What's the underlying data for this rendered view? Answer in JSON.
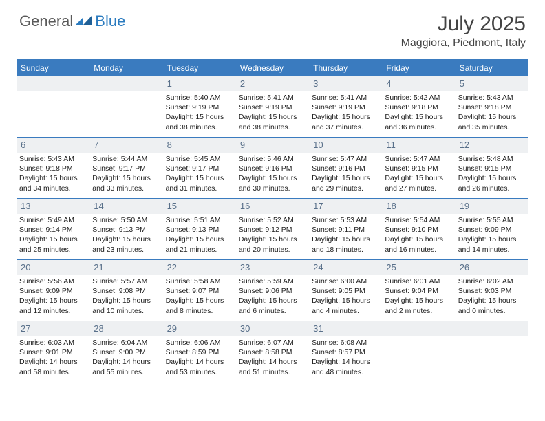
{
  "logo": {
    "text1": "General",
    "text2": "Blue"
  },
  "title": "July 2025",
  "location": "Maggiora, Piedmont, Italy",
  "colors": {
    "header_bar": "#3a7bbf",
    "header_text": "#ffffff",
    "daynum_bg": "#eef0f2",
    "daynum_color": "#59708a",
    "body_text": "#222222",
    "logo_gray": "#5a5a5a",
    "logo_blue": "#2b7bbf"
  },
  "weekdays": [
    "Sunday",
    "Monday",
    "Tuesday",
    "Wednesday",
    "Thursday",
    "Friday",
    "Saturday"
  ],
  "weeks": [
    [
      null,
      null,
      {
        "n": "1",
        "sr": "5:40 AM",
        "ss": "9:19 PM",
        "dl": "15 hours and 38 minutes."
      },
      {
        "n": "2",
        "sr": "5:41 AM",
        "ss": "9:19 PM",
        "dl": "15 hours and 38 minutes."
      },
      {
        "n": "3",
        "sr": "5:41 AM",
        "ss": "9:19 PM",
        "dl": "15 hours and 37 minutes."
      },
      {
        "n": "4",
        "sr": "5:42 AM",
        "ss": "9:18 PM",
        "dl": "15 hours and 36 minutes."
      },
      {
        "n": "5",
        "sr": "5:43 AM",
        "ss": "9:18 PM",
        "dl": "15 hours and 35 minutes."
      }
    ],
    [
      {
        "n": "6",
        "sr": "5:43 AM",
        "ss": "9:18 PM",
        "dl": "15 hours and 34 minutes."
      },
      {
        "n": "7",
        "sr": "5:44 AM",
        "ss": "9:17 PM",
        "dl": "15 hours and 33 minutes."
      },
      {
        "n": "8",
        "sr": "5:45 AM",
        "ss": "9:17 PM",
        "dl": "15 hours and 31 minutes."
      },
      {
        "n": "9",
        "sr": "5:46 AM",
        "ss": "9:16 PM",
        "dl": "15 hours and 30 minutes."
      },
      {
        "n": "10",
        "sr": "5:47 AM",
        "ss": "9:16 PM",
        "dl": "15 hours and 29 minutes."
      },
      {
        "n": "11",
        "sr": "5:47 AM",
        "ss": "9:15 PM",
        "dl": "15 hours and 27 minutes."
      },
      {
        "n": "12",
        "sr": "5:48 AM",
        "ss": "9:15 PM",
        "dl": "15 hours and 26 minutes."
      }
    ],
    [
      {
        "n": "13",
        "sr": "5:49 AM",
        "ss": "9:14 PM",
        "dl": "15 hours and 25 minutes."
      },
      {
        "n": "14",
        "sr": "5:50 AM",
        "ss": "9:13 PM",
        "dl": "15 hours and 23 minutes."
      },
      {
        "n": "15",
        "sr": "5:51 AM",
        "ss": "9:13 PM",
        "dl": "15 hours and 21 minutes."
      },
      {
        "n": "16",
        "sr": "5:52 AM",
        "ss": "9:12 PM",
        "dl": "15 hours and 20 minutes."
      },
      {
        "n": "17",
        "sr": "5:53 AM",
        "ss": "9:11 PM",
        "dl": "15 hours and 18 minutes."
      },
      {
        "n": "18",
        "sr": "5:54 AM",
        "ss": "9:10 PM",
        "dl": "15 hours and 16 minutes."
      },
      {
        "n": "19",
        "sr": "5:55 AM",
        "ss": "9:09 PM",
        "dl": "15 hours and 14 minutes."
      }
    ],
    [
      {
        "n": "20",
        "sr": "5:56 AM",
        "ss": "9:09 PM",
        "dl": "15 hours and 12 minutes."
      },
      {
        "n": "21",
        "sr": "5:57 AM",
        "ss": "9:08 PM",
        "dl": "15 hours and 10 minutes."
      },
      {
        "n": "22",
        "sr": "5:58 AM",
        "ss": "9:07 PM",
        "dl": "15 hours and 8 minutes."
      },
      {
        "n": "23",
        "sr": "5:59 AM",
        "ss": "9:06 PM",
        "dl": "15 hours and 6 minutes."
      },
      {
        "n": "24",
        "sr": "6:00 AM",
        "ss": "9:05 PM",
        "dl": "15 hours and 4 minutes."
      },
      {
        "n": "25",
        "sr": "6:01 AM",
        "ss": "9:04 PM",
        "dl": "15 hours and 2 minutes."
      },
      {
        "n": "26",
        "sr": "6:02 AM",
        "ss": "9:03 PM",
        "dl": "15 hours and 0 minutes."
      }
    ],
    [
      {
        "n": "27",
        "sr": "6:03 AM",
        "ss": "9:01 PM",
        "dl": "14 hours and 58 minutes."
      },
      {
        "n": "28",
        "sr": "6:04 AM",
        "ss": "9:00 PM",
        "dl": "14 hours and 55 minutes."
      },
      {
        "n": "29",
        "sr": "6:06 AM",
        "ss": "8:59 PM",
        "dl": "14 hours and 53 minutes."
      },
      {
        "n": "30",
        "sr": "6:07 AM",
        "ss": "8:58 PM",
        "dl": "14 hours and 51 minutes."
      },
      {
        "n": "31",
        "sr": "6:08 AM",
        "ss": "8:57 PM",
        "dl": "14 hours and 48 minutes."
      },
      null,
      null
    ]
  ],
  "labels": {
    "sunrise": "Sunrise:",
    "sunset": "Sunset:",
    "daylight": "Daylight:"
  }
}
